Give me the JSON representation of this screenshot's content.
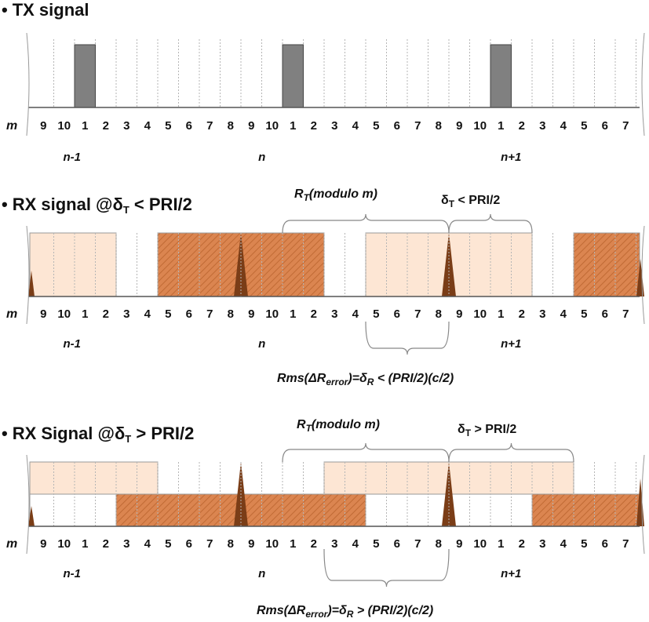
{
  "colors": {
    "tx_pulse": "#808080",
    "rx_dark": "#db8550",
    "rx_hatch": "#c06a34",
    "rx_light": "#fde6d4",
    "spike": "#7a3d17",
    "grid": "#b5b5b5",
    "axis": "#555555",
    "brace": "#888888"
  },
  "tick_labels": [
    "9",
    "10",
    "1",
    "2",
    "3",
    "4",
    "5",
    "6",
    "7",
    "8",
    "9",
    "10",
    "1",
    "2",
    "3",
    "4",
    "5",
    "6",
    "7",
    "8",
    "9",
    "10",
    "1",
    "2",
    "3",
    "4",
    "5",
    "6",
    "7"
  ],
  "m_label": "m",
  "period_labels": [
    "n-1",
    "n",
    "n+1"
  ],
  "sections": [
    {
      "title_bullet": "•",
      "title": "TX signal",
      "annotations": []
    },
    {
      "title_bullet": "•",
      "title_prefix": "RX signal  @",
      "title_delta": "δ",
      "title_sub": "T",
      "title_suffix": " < PRI/2",
      "rt_label_main": "R",
      "rt_label_sub": "T",
      "rt_label_rest": "(modulo m)",
      "delta_label_delta": "δ",
      "delta_label_sub": "T",
      "delta_label_rest": " < PRI/2",
      "rms_prefix": "Rms(",
      "rms_delta": "ΔR",
      "rms_sub": "error",
      "rms_mid": ")=",
      "rms_delta_r": "δ",
      "rms_sub_r": "R",
      "rms_suffix": " < (PRI/2)(c/2)"
    },
    {
      "title_bullet": "•",
      "title_prefix": "RX Signal @",
      "title_delta": "δ",
      "title_sub": "T",
      "title_suffix": " > PRI/2",
      "rt_label_main": "R",
      "rt_label_sub": "T",
      "rt_label_rest": "(modulo m)",
      "delta_label_delta": "δ",
      "delta_label_sub": "T",
      "delta_label_rest": " > PRI/2",
      "rms_prefix": "Rms(",
      "rms_delta": "ΔR",
      "rms_sub": "error",
      "rms_mid": ")=",
      "rms_delta_r": "δ",
      "rms_sub_r": "R",
      "rms_suffix": " > (PRI/2)(c/2)"
    }
  ]
}
